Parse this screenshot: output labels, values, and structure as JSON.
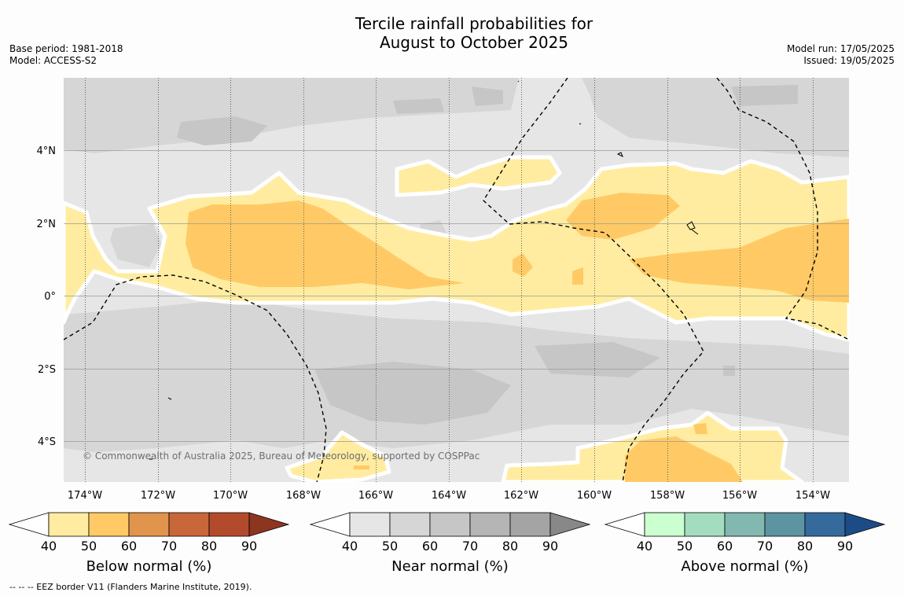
{
  "title_line1": "Tercile rainfall probabilities for",
  "title_line2": "August to October 2025",
  "meta_left": {
    "base_period": "Base period: 1981-2018",
    "model": "Model: ACCESS-S2"
  },
  "meta_right": {
    "model_run": "Model run: 17/05/2025",
    "issued": "Issued: 19/05/2025"
  },
  "map": {
    "lon_ticks": [
      "174°W",
      "172°W",
      "170°W",
      "168°W",
      "166°W",
      "164°W",
      "162°W",
      "160°W",
      "158°W",
      "156°W",
      "154°W"
    ],
    "lat_ticks": [
      "4°N",
      "2°N",
      "0°",
      "2°S",
      "4°S"
    ],
    "copyright": "© Commonwealth of Australia 2025, Bureau of Meteorology, supported by COSPPac",
    "colors": {
      "near_40_50": "#e6e6e6",
      "near_50_60": "#d6d6d6",
      "near_60_70": "#c6c6c6",
      "below_40_50": "#ffeca0",
      "below_50_60": "#ffca66"
    }
  },
  "legends": [
    {
      "title": "Below normal (%)",
      "ticks": [
        "40",
        "50",
        "60",
        "70",
        "80",
        "90"
      ],
      "colors": [
        "#ffeca0",
        "#ffca66",
        "#e0944c",
        "#c8673a",
        "#b24b2c",
        "#8e3520"
      ]
    },
    {
      "title": "Near normal (%)",
      "ticks": [
        "40",
        "50",
        "60",
        "70",
        "80",
        "90"
      ],
      "colors": [
        "#e6e6e6",
        "#d6d6d6",
        "#c6c6c6",
        "#b5b5b5",
        "#a4a4a4",
        "#888888"
      ]
    },
    {
      "title": "Above normal (%)",
      "ticks": [
        "40",
        "50",
        "60",
        "70",
        "80",
        "90"
      ],
      "colors": [
        "#ccffd0",
        "#a4dcc0",
        "#82b8b0",
        "#5c94a2",
        "#356a9c",
        "#1c4c86"
      ]
    }
  ],
  "footer": "--  --  -- EEZ border V11 (Flanders Marine Institute, 2019)."
}
